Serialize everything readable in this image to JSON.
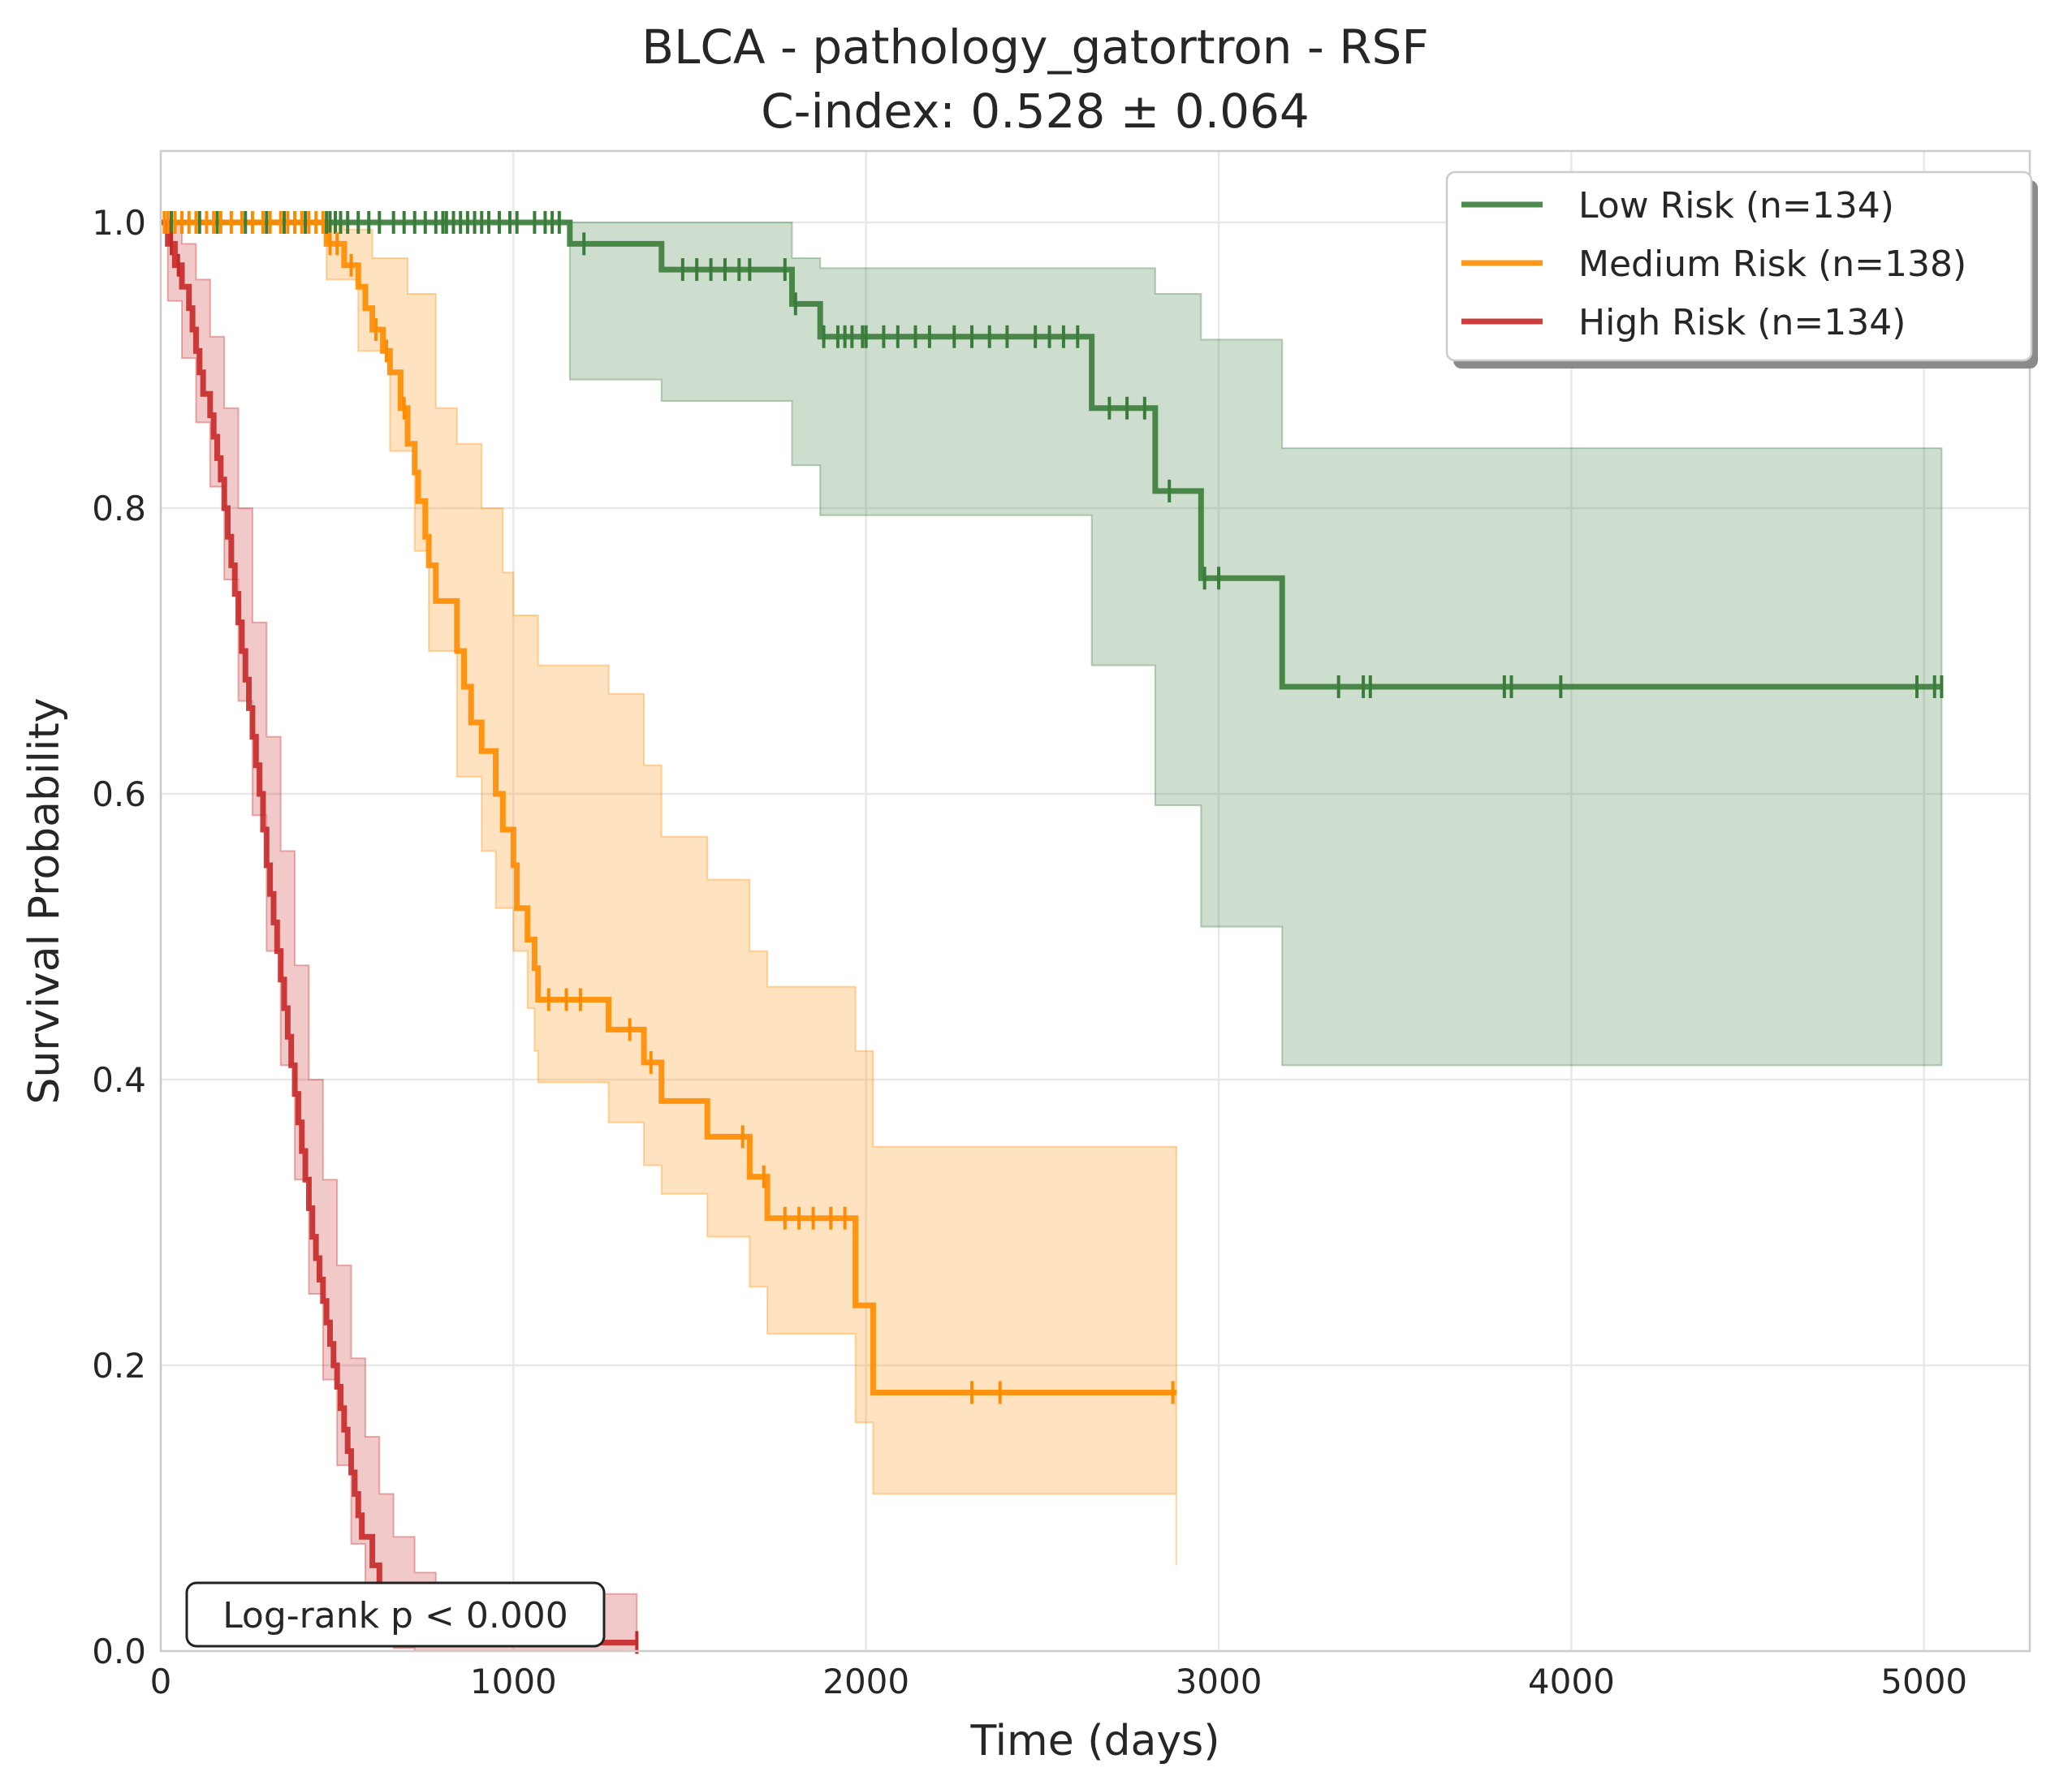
{
  "chart_data": {
    "type": "line",
    "title": "BLCA - pathology_gatortron - RSF",
    "subtitle": "C-index: 0.528 ± 0.064",
    "xlabel": "Time (days)",
    "ylabel": "Survival Probability",
    "xlim": [
      0,
      5300
    ],
    "ylim": [
      0,
      1.05
    ],
    "xticks": [
      0,
      1000,
      2000,
      3000,
      4000,
      5000
    ],
    "xtick_labels": [
      "0",
      "1000",
      "2000",
      "3000",
      "4000",
      "5000"
    ],
    "yticks": [
      0,
      0.2,
      0.4,
      0.6,
      0.8,
      1.0
    ],
    "ytick_labels": [
      "0.0",
      "0.2",
      "0.4",
      "0.6",
      "0.8",
      "1.0"
    ],
    "grid": true,
    "legend_position": "top-right",
    "annotation": "Log-rank p < 0.000",
    "series": [
      {
        "name": "Low Risk (n=134)",
        "color": "#3a7d3a",
        "steps": [
          [
            0,
            1.0
          ],
          [
            1160,
            0.985
          ],
          [
            1420,
            0.967
          ],
          [
            1790,
            0.943
          ],
          [
            1870,
            0.92
          ],
          [
            2640,
            0.87
          ],
          [
            2820,
            0.812
          ],
          [
            2950,
            0.751
          ],
          [
            3180,
            0.675
          ],
          [
            5050,
            0.675
          ]
        ],
        "ci_lower": [
          [
            0,
            1.0
          ],
          [
            1160,
            0.89
          ],
          [
            1420,
            0.875
          ],
          [
            1790,
            0.83
          ],
          [
            1870,
            0.795
          ],
          [
            2640,
            0.69
          ],
          [
            2820,
            0.592
          ],
          [
            2950,
            0.507
          ],
          [
            3180,
            0.41
          ],
          [
            5050,
            0.41
          ]
        ],
        "ci_upper": [
          [
            0,
            1.0
          ],
          [
            1160,
            1.0
          ],
          [
            1790,
            0.975
          ],
          [
            1870,
            0.968
          ],
          [
            2640,
            0.968
          ],
          [
            2820,
            0.95
          ],
          [
            2950,
            0.918
          ],
          [
            3180,
            0.842
          ],
          [
            5050,
            0.842
          ]
        ],
        "censored": [
          30,
          60,
          110,
          160,
          240,
          300,
          350,
          410,
          470,
          480,
          495,
          510,
          530,
          560,
          590,
          620,
          660,
          690,
          720,
          750,
          780,
          800,
          810,
          830,
          850,
          870,
          890,
          910,
          930,
          960,
          990,
          1010,
          1060,
          1090,
          1110,
          1130,
          1200,
          1480,
          1520,
          1560,
          1600,
          1640,
          1670,
          1770,
          1800,
          1880,
          1920,
          1940,
          1960,
          1990,
          2000,
          2050,
          2090,
          2140,
          2180,
          2250,
          2300,
          2350,
          2400,
          2480,
          2520,
          2560,
          2600,
          2690,
          2740,
          2790,
          2860,
          2960,
          3000,
          3340,
          3410,
          3430,
          3810,
          3830,
          3970,
          4980,
          5030,
          5050
        ]
      },
      {
        "name": "Medium Risk (n=138)",
        "color": "#ff8c00",
        "steps": [
          [
            0,
            1.0
          ],
          [
            470,
            0.985
          ],
          [
            520,
            0.97
          ],
          [
            560,
            0.955
          ],
          [
            580,
            0.94
          ],
          [
            600,
            0.925
          ],
          [
            630,
            0.91
          ],
          [
            650,
            0.895
          ],
          [
            680,
            0.87
          ],
          [
            700,
            0.845
          ],
          [
            720,
            0.825
          ],
          [
            730,
            0.805
          ],
          [
            750,
            0.78
          ],
          [
            760,
            0.76
          ],
          [
            780,
            0.735
          ],
          [
            840,
            0.7
          ],
          [
            860,
            0.675
          ],
          [
            880,
            0.65
          ],
          [
            910,
            0.63
          ],
          [
            950,
            0.6
          ],
          [
            970,
            0.575
          ],
          [
            1000,
            0.55
          ],
          [
            1010,
            0.52
          ],
          [
            1040,
            0.498
          ],
          [
            1060,
            0.478
          ],
          [
            1070,
            0.456
          ],
          [
            1270,
            0.435
          ],
          [
            1370,
            0.412
          ],
          [
            1420,
            0.385
          ],
          [
            1550,
            0.36
          ],
          [
            1670,
            0.332
          ],
          [
            1720,
            0.303
          ],
          [
            1970,
            0.242
          ],
          [
            2020,
            0.181
          ],
          [
            2880,
            0.181
          ]
        ],
        "ci_lower": [
          [
            0,
            1.0
          ],
          [
            470,
            0.96
          ],
          [
            560,
            0.91
          ],
          [
            650,
            0.84
          ],
          [
            720,
            0.77
          ],
          [
            760,
            0.7
          ],
          [
            840,
            0.612
          ],
          [
            910,
            0.56
          ],
          [
            950,
            0.52
          ],
          [
            1000,
            0.49
          ],
          [
            1040,
            0.45
          ],
          [
            1060,
            0.42
          ],
          [
            1070,
            0.398
          ],
          [
            1270,
            0.37
          ],
          [
            1370,
            0.34
          ],
          [
            1420,
            0.32
          ],
          [
            1550,
            0.29
          ],
          [
            1670,
            0.255
          ],
          [
            1720,
            0.222
          ],
          [
            1970,
            0.16
          ],
          [
            2020,
            0.11
          ],
          [
            2880,
            0.06
          ]
        ],
        "ci_upper": [
          [
            0,
            1.0
          ],
          [
            520,
            0.995
          ],
          [
            600,
            0.975
          ],
          [
            700,
            0.95
          ],
          [
            780,
            0.87
          ],
          [
            840,
            0.845
          ],
          [
            910,
            0.8
          ],
          [
            970,
            0.755
          ],
          [
            1000,
            0.725
          ],
          [
            1070,
            0.69
          ],
          [
            1270,
            0.67
          ],
          [
            1370,
            0.62
          ],
          [
            1420,
            0.57
          ],
          [
            1550,
            0.54
          ],
          [
            1670,
            0.49
          ],
          [
            1720,
            0.465
          ],
          [
            1970,
            0.42
          ],
          [
            2020,
            0.353
          ],
          [
            2880,
            0.353
          ]
        ],
        "censored": [
          10,
          20,
          40,
          60,
          80,
          100,
          130,
          150,
          170,
          200,
          230,
          260,
          290,
          310,
          340,
          360,
          380,
          400,
          420,
          440,
          460,
          480,
          500,
          540,
          610,
          640,
          690,
          1100,
          1150,
          1190,
          1330,
          1390,
          1650,
          1710,
          1770,
          1810,
          1850,
          1900,
          1940,
          2300,
          2380,
          2870
        ]
      },
      {
        "name": "High Risk (n=134)",
        "color": "#c62828",
        "steps": [
          [
            0,
            1.0
          ],
          [
            20,
            0.985
          ],
          [
            40,
            0.97
          ],
          [
            60,
            0.955
          ],
          [
            80,
            0.94
          ],
          [
            90,
            0.925
          ],
          [
            100,
            0.91
          ],
          [
            110,
            0.895
          ],
          [
            120,
            0.88
          ],
          [
            140,
            0.865
          ],
          [
            150,
            0.85
          ],
          [
            160,
            0.835
          ],
          [
            170,
            0.82
          ],
          [
            180,
            0.8
          ],
          [
            190,
            0.78
          ],
          [
            200,
            0.76
          ],
          [
            210,
            0.74
          ],
          [
            220,
            0.72
          ],
          [
            230,
            0.7
          ],
          [
            240,
            0.68
          ],
          [
            250,
            0.66
          ],
          [
            260,
            0.64
          ],
          [
            270,
            0.62
          ],
          [
            280,
            0.6
          ],
          [
            290,
            0.575
          ],
          [
            300,
            0.55
          ],
          [
            310,
            0.53
          ],
          [
            320,
            0.51
          ],
          [
            330,
            0.49
          ],
          [
            340,
            0.47
          ],
          [
            350,
            0.45
          ],
          [
            360,
            0.43
          ],
          [
            370,
            0.41
          ],
          [
            380,
            0.39
          ],
          [
            390,
            0.37
          ],
          [
            400,
            0.35
          ],
          [
            410,
            0.33
          ],
          [
            420,
            0.31
          ],
          [
            430,
            0.29
          ],
          [
            440,
            0.275
          ],
          [
            450,
            0.26
          ],
          [
            460,
            0.245
          ],
          [
            470,
            0.23
          ],
          [
            480,
            0.215
          ],
          [
            490,
            0.2
          ],
          [
            500,
            0.185
          ],
          [
            510,
            0.17
          ],
          [
            520,
            0.155
          ],
          [
            530,
            0.14
          ],
          [
            540,
            0.125
          ],
          [
            550,
            0.11
          ],
          [
            560,
            0.095
          ],
          [
            570,
            0.08
          ],
          [
            600,
            0.06
          ],
          [
            620,
            0.04
          ],
          [
            660,
            0.025
          ],
          [
            720,
            0.012
          ],
          [
            780,
            0.006
          ],
          [
            1350,
            0.006
          ]
        ],
        "ci_lower": [
          [
            0,
            1.0
          ],
          [
            20,
            0.945
          ],
          [
            60,
            0.905
          ],
          [
            100,
            0.86
          ],
          [
            140,
            0.815
          ],
          [
            180,
            0.75
          ],
          [
            220,
            0.665
          ],
          [
            260,
            0.585
          ],
          [
            300,
            0.49
          ],
          [
            340,
            0.41
          ],
          [
            380,
            0.33
          ],
          [
            420,
            0.25
          ],
          [
            460,
            0.19
          ],
          [
            500,
            0.13
          ],
          [
            540,
            0.075
          ],
          [
            580,
            0.035
          ],
          [
            620,
            0.01
          ],
          [
            660,
            0.002
          ],
          [
            720,
            0.0
          ],
          [
            1350,
            0.0
          ]
        ],
        "ci_upper": [
          [
            0,
            1.0
          ],
          [
            60,
            0.985
          ],
          [
            100,
            0.96
          ],
          [
            140,
            0.92
          ],
          [
            180,
            0.87
          ],
          [
            220,
            0.8
          ],
          [
            260,
            0.72
          ],
          [
            300,
            0.64
          ],
          [
            340,
            0.56
          ],
          [
            380,
            0.48
          ],
          [
            420,
            0.4
          ],
          [
            460,
            0.33
          ],
          [
            500,
            0.27
          ],
          [
            540,
            0.205
          ],
          [
            580,
            0.15
          ],
          [
            620,
            0.11
          ],
          [
            660,
            0.08
          ],
          [
            720,
            0.055
          ],
          [
            780,
            0.04
          ],
          [
            1350,
            0.04
          ]
        ],
        "censored": [
          30,
          50,
          1350
        ]
      }
    ]
  }
}
